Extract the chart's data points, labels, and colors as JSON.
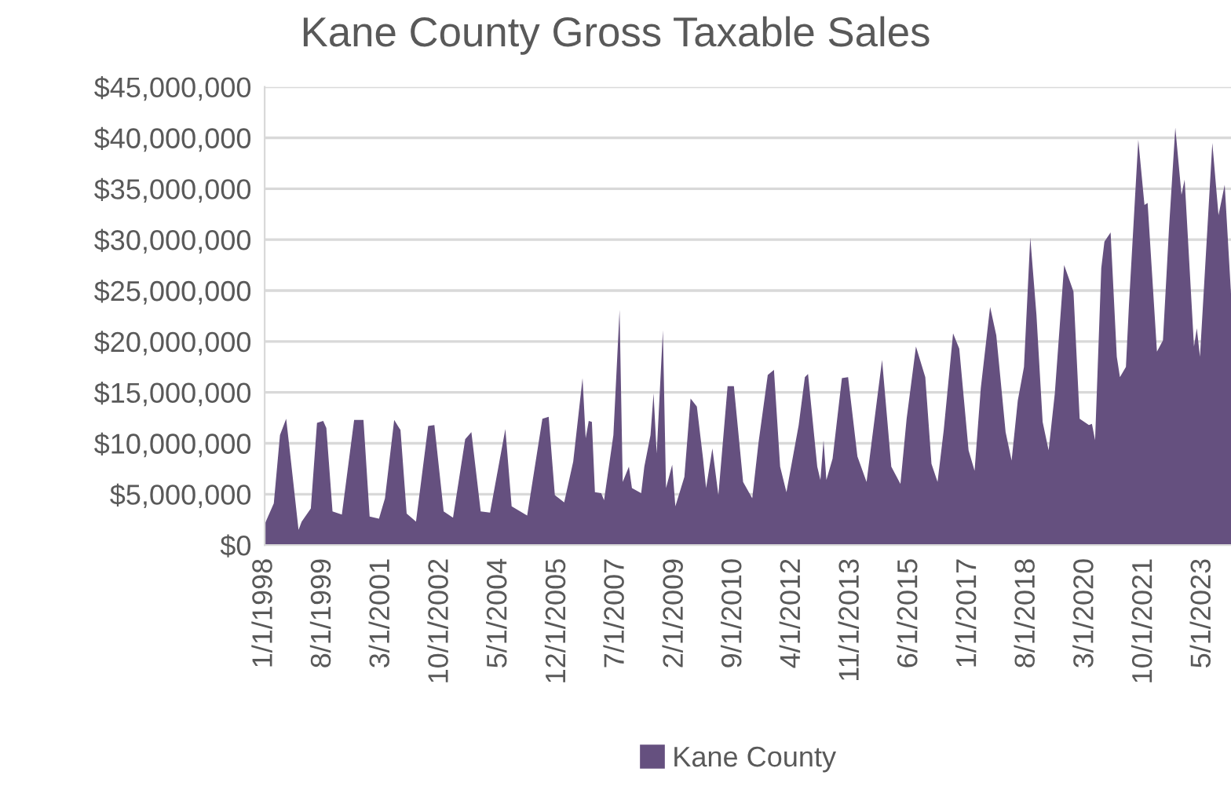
{
  "chart_data": {
    "type": "area",
    "title": "Kane County Gross Taxable Sales",
    "series": [
      {
        "name": "Kane County",
        "color": "#65507f",
        "x": [
          "1998-01",
          "1998-04",
          "1998-06",
          "1998-08",
          "1998-09",
          "1998-12",
          "1999-01",
          "1999-04",
          "1999-06",
          "1999-08",
          "1999-09",
          "1999-11",
          "2000-02",
          "2000-06",
          "2000-09",
          "2000-11",
          "2001-02",
          "2001-04",
          "2001-07",
          "2001-09",
          "2001-11",
          "2002-02",
          "2002-06",
          "2002-08",
          "2002-11",
          "2003-02",
          "2003-06",
          "2003-08",
          "2003-11",
          "2004-02",
          "2004-07",
          "2004-09",
          "2005-02",
          "2005-07",
          "2005-09",
          "2005-11",
          "2006-02",
          "2006-05",
          "2006-08",
          "2006-09",
          "2006-10",
          "2006-11",
          "2006-12",
          "2007-02",
          "2007-03",
          "2007-06",
          "2007-08",
          "2007-09",
          "2007-11",
          "2007-12",
          "2008-03",
          "2008-04",
          "2008-06",
          "2008-07",
          "2008-08",
          "2008-10",
          "2008-11",
          "2009-01",
          "2009-02",
          "2009-05",
          "2009-07",
          "2009-09",
          "2009-11",
          "2009-12",
          "2010-02",
          "2010-04",
          "2010-07",
          "2010-09",
          "2010-12",
          "2011-03",
          "2011-05",
          "2011-08",
          "2011-10",
          "2011-12",
          "2012-02",
          "2012-06",
          "2012-08",
          "2012-09",
          "2012-12",
          "2013-01",
          "2013-02",
          "2013-03",
          "2013-05",
          "2013-08",
          "2013-10",
          "2014-01",
          "2014-04",
          "2014-09",
          "2014-12",
          "2015-03",
          "2015-05",
          "2015-08",
          "2015-11",
          "2016-01",
          "2016-03",
          "2016-05",
          "2016-08",
          "2016-10",
          "2017-01",
          "2017-03",
          "2017-05",
          "2017-08",
          "2017-10",
          "2018-01",
          "2018-03",
          "2018-05",
          "2018-07",
          "2018-09",
          "2018-11",
          "2019-01",
          "2019-03",
          "2019-05",
          "2019-08",
          "2019-11",
          "2020-01",
          "2020-04",
          "2020-05",
          "2020-06",
          "2020-08",
          "2020-09",
          "2020-11",
          "2021-01",
          "2021-02",
          "2021-04",
          "2021-05",
          "2021-08",
          "2021-10",
          "2021-11",
          "2022-02",
          "2022-04",
          "2022-06",
          "2022-08",
          "2022-10",
          "2022-11",
          "2023-02",
          "2023-03",
          "2023-04",
          "2023-08",
          "2023-10",
          "2023-12",
          "2024-02"
        ],
        "values": [
          2050000,
          4100000,
          10800000,
          12400000,
          9700000,
          1500000,
          2300000,
          3600000,
          12000000,
          12200000,
          11500000,
          3300000,
          3000000,
          12300000,
          12300000,
          2800000,
          2600000,
          4600000,
          12300000,
          11300000,
          3100000,
          2300000,
          11700000,
          11800000,
          3300000,
          2700000,
          10400000,
          11100000,
          3300000,
          3200000,
          11400000,
          3800000,
          2900000,
          12400000,
          12600000,
          4900000,
          4200000,
          8200000,
          16400000,
          10500000,
          12200000,
          12100000,
          5200000,
          5100000,
          4400000,
          10800000,
          23100000,
          6200000,
          7700000,
          5600000,
          5100000,
          7700000,
          10800000,
          14900000,
          9000000,
          21100000,
          5600000,
          7900000,
          3800000,
          6700000,
          14400000,
          13600000,
          8500000,
          5600000,
          9500000,
          4900000,
          15600000,
          15600000,
          6200000,
          4600000,
          10000000,
          16700000,
          17200000,
          7700000,
          5200000,
          11800000,
          16500000,
          16800000,
          7700000,
          6400000,
          10300000,
          6400000,
          8500000,
          16400000,
          16500000,
          8700000,
          6200000,
          18200000,
          7700000,
          6000000,
          12400000,
          19500000,
          16500000,
          8000000,
          6200000,
          11300000,
          20800000,
          19300000,
          9300000,
          7300000,
          15400000,
          23400000,
          20600000,
          11100000,
          8300000,
          14200000,
          17500000,
          30200000,
          22600000,
          12100000,
          9300000,
          14900000,
          27500000,
          24900000,
          12400000,
          11800000,
          11900000,
          10300000,
          27200000,
          29800000,
          30700000,
          18500000,
          16500000,
          17500000,
          23600000,
          39800000,
          33400000,
          33600000,
          19000000,
          20100000,
          31300000,
          41000000,
          34400000,
          35900000,
          19500000,
          21300000,
          18500000,
          39500000,
          32400000,
          35400000,
          24700000
        ]
      }
    ],
    "xlim": [
      "1998-01",
      "2024-02"
    ],
    "xticks": [
      {
        "value": "1998-01",
        "label": "1/1/1998"
      },
      {
        "value": "1999-08",
        "label": "8/1/1999"
      },
      {
        "value": "2001-03",
        "label": "3/1/2001"
      },
      {
        "value": "2002-10",
        "label": "10/1/2002"
      },
      {
        "value": "2004-05",
        "label": "5/1/2004"
      },
      {
        "value": "2005-12",
        "label": "12/1/2005"
      },
      {
        "value": "2007-07",
        "label": "7/1/2007"
      },
      {
        "value": "2009-02",
        "label": "2/1/2009"
      },
      {
        "value": "2010-09",
        "label": "9/1/2010"
      },
      {
        "value": "2012-04",
        "label": "4/1/2012"
      },
      {
        "value": "2013-11",
        "label": "11/1/2013"
      },
      {
        "value": "2015-06",
        "label": "6/1/2015"
      },
      {
        "value": "2017-01",
        "label": "1/1/2017"
      },
      {
        "value": "2018-08",
        "label": "8/1/2018"
      },
      {
        "value": "2020-03",
        "label": "3/1/2020"
      },
      {
        "value": "2021-10",
        "label": "10/1/2021"
      },
      {
        "value": "2023-05",
        "label": "5/1/2023"
      }
    ],
    "ylim": [
      0,
      45000000
    ],
    "yticks": [
      {
        "value": 0,
        "label": "$0"
      },
      {
        "value": 5000000,
        "label": "$5,000,000"
      },
      {
        "value": 10000000,
        "label": "$10,000,000"
      },
      {
        "value": 15000000,
        "label": "$15,000,000"
      },
      {
        "value": 20000000,
        "label": "$20,000,000"
      },
      {
        "value": 25000000,
        "label": "$25,000,000"
      },
      {
        "value": 30000000,
        "label": "$30,000,000"
      },
      {
        "value": 35000000,
        "label": "$35,000,000"
      },
      {
        "value": 40000000,
        "label": "$40,000,000"
      },
      {
        "value": 45000000,
        "label": "$45,000,000"
      }
    ],
    "grid": "y",
    "legend": "bottom"
  }
}
